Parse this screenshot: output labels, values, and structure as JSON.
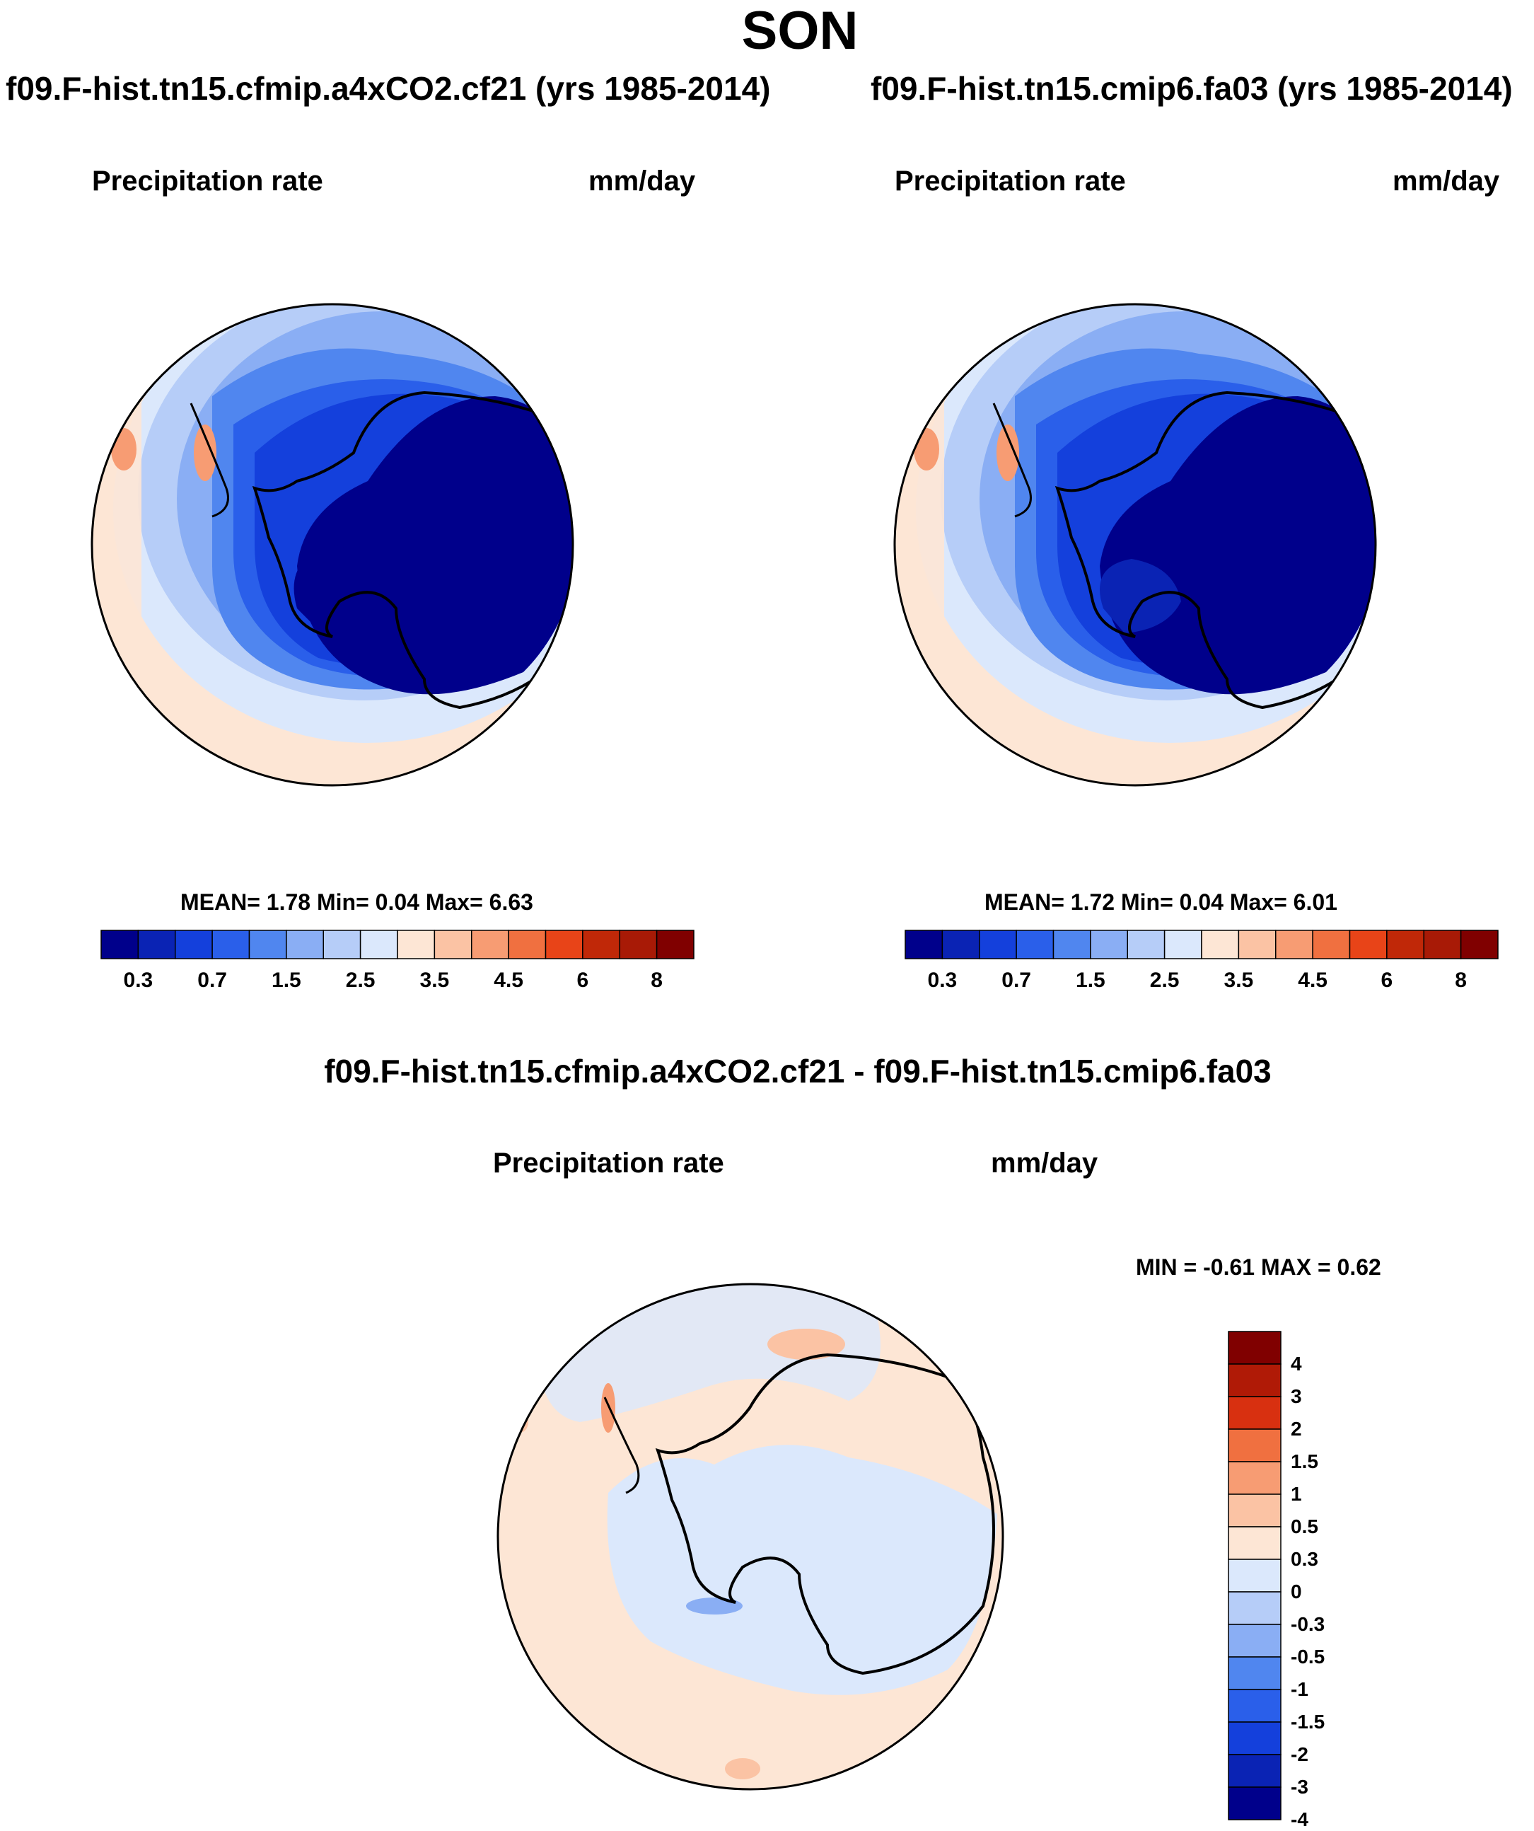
{
  "header": {
    "title": "SON"
  },
  "panels": [
    {
      "case_title": "f09.F-hist.tn15.cfmip.a4xCO2.cf21 (yrs 1985-2014)",
      "variable": "Precipitation rate",
      "units": "mm/day",
      "stats": {
        "mean_label": "MEAN=",
        "mean": "1.78",
        "min_label": "Min=",
        "min": "0.04",
        "max_label": "Max=",
        "max": "6.63"
      }
    },
    {
      "case_title": "f09.F-hist.tn15.cmip6.fa03 (yrs 1985-2014)",
      "variable": "Precipitation rate",
      "units": "mm/day",
      "stats": {
        "mean_label": "MEAN=",
        "mean": "1.72",
        "min_label": "Min=",
        "min": "0.04",
        "max_label": "Max=",
        "max": "6.01"
      }
    }
  ],
  "diff_panel": {
    "title": "f09.F-hist.tn15.cfmip.a4xCO2.cf21 - f09.F-hist.tn15.cmip6.fa03",
    "variable": "Precipitation rate",
    "units": "mm/day",
    "stats": {
      "min_label": "MIN =",
      "min": "-0.61",
      "max_label": "MAX =",
      "max": "0.62"
    }
  },
  "chart_data": [
    {
      "type": "heatmap",
      "title": "f09.F-hist.tn15.cfmip.a4xCO2.cf21 (yrs 1985-2014)",
      "projection": "south polar stereographic",
      "variable": "Precipitation rate",
      "units": "mm/day",
      "mean": 1.78,
      "min": 0.04,
      "max": 6.63,
      "colorbar_ticks": [
        "0.3",
        "0.7",
        "1.5",
        "2.5",
        "3.5",
        "4.5",
        "6",
        "8"
      ],
      "colorbar_colors": [
        "#00008b",
        "#0a23b4",
        "#1440dc",
        "#2a5fea",
        "#5086ef",
        "#8aaef4",
        "#b6cdf8",
        "#dbe8fc",
        "#fde6d5",
        "#fbc3a4",
        "#f79c73",
        "#f07040",
        "#e84418",
        "#c02808",
        "#a81a06",
        "#800000"
      ]
    },
    {
      "type": "heatmap",
      "title": "f09.F-hist.tn15.cmip6.fa03 (yrs 1985-2014)",
      "projection": "south polar stereographic",
      "variable": "Precipitation rate",
      "units": "mm/day",
      "mean": 1.72,
      "min": 0.04,
      "max": 6.01,
      "colorbar_ticks": [
        "0.3",
        "0.7",
        "1.5",
        "2.5",
        "3.5",
        "4.5",
        "6",
        "8"
      ],
      "colorbar_colors": [
        "#00008b",
        "#0a23b4",
        "#1440dc",
        "#2a5fea",
        "#5086ef",
        "#8aaef4",
        "#b6cdf8",
        "#dbe8fc",
        "#fde6d5",
        "#fbc3a4",
        "#f79c73",
        "#f07040",
        "#e84418",
        "#c02808",
        "#a81a06",
        "#800000"
      ]
    },
    {
      "type": "heatmap",
      "title": "f09.F-hist.tn15.cfmip.a4xCO2.cf21 - f09.F-hist.tn15.cmip6.fa03",
      "projection": "south polar stereographic",
      "variable": "Precipitation rate",
      "units": "mm/day",
      "min": -0.61,
      "max": 0.62,
      "colorbar_ticks": [
        "4",
        "3",
        "2",
        "1.5",
        "1",
        "0.5",
        "0.3",
        "0",
        "-0.3",
        "-0.5",
        "-1",
        "-1.5",
        "-2",
        "-3",
        "-4"
      ],
      "colorbar_colors": [
        "#800000",
        "#b01a06",
        "#d83010",
        "#f07040",
        "#f79c73",
        "#fbc3a4",
        "#fde6d5",
        "#dbe8fc",
        "#b6cdf8",
        "#8aaef4",
        "#5086ef",
        "#2a5fea",
        "#1440dc",
        "#0a23b4",
        "#00008b"
      ]
    }
  ]
}
